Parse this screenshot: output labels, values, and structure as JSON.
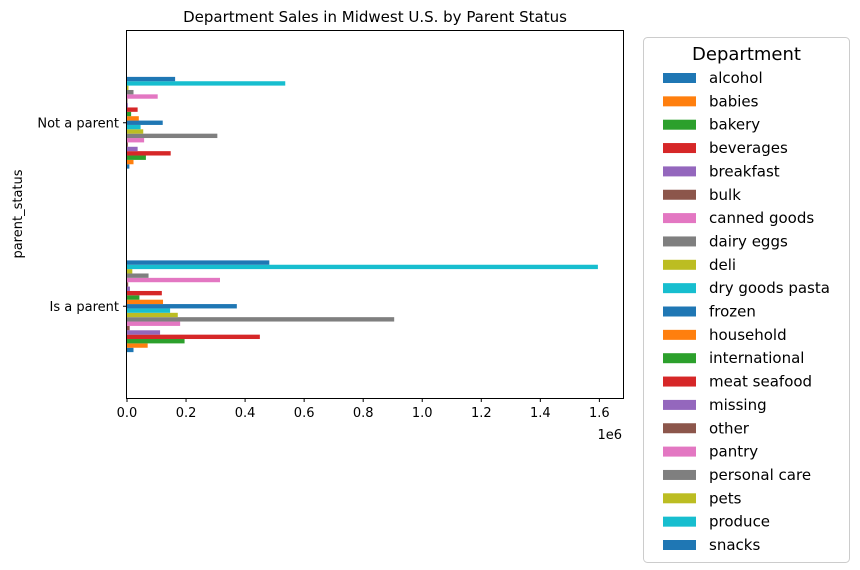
{
  "chart_data": {
    "type": "bar",
    "orientation": "horizontal",
    "title": "Department Sales in Midwest U.S. by Parent Status",
    "ylabel": "parent_status",
    "xlabel": "",
    "x_scale_label": "1e6",
    "x_tick_labels": [
      "0.0",
      "0.2",
      "0.4",
      "0.6",
      "0.8",
      "1.0",
      "1.2",
      "1.4",
      "1.6"
    ],
    "xlim": [
      0,
      1680000
    ],
    "categories": [
      "Is a parent",
      "Not a parent"
    ],
    "legend": {
      "title": "Department",
      "placement": "outside-right"
    },
    "series": [
      {
        "name": "alcohol",
        "color": "#1f77b4",
        "values": [
          22000,
          8000
        ]
      },
      {
        "name": "babies",
        "color": "#ff7f0e",
        "values": [
          70000,
          22000
        ]
      },
      {
        "name": "bakery",
        "color": "#2ca02c",
        "values": [
          195000,
          64000
        ]
      },
      {
        "name": "beverages",
        "color": "#d62728",
        "values": [
          450000,
          148000
        ]
      },
      {
        "name": "breakfast",
        "color": "#9467bd",
        "values": [
          112000,
          36000
        ]
      },
      {
        "name": "bulk",
        "color": "#8c564b",
        "values": [
          9000,
          3000
        ]
      },
      {
        "name": "canned goods",
        "color": "#e377c2",
        "values": [
          180000,
          58000
        ]
      },
      {
        "name": "dairy eggs",
        "color": "#7f7f7f",
        "values": [
          905000,
          306000
        ]
      },
      {
        "name": "deli",
        "color": "#bcbd22",
        "values": [
          172000,
          55000
        ]
      },
      {
        "name": "dry goods pasta",
        "color": "#17becf",
        "values": [
          146000,
          46000
        ]
      },
      {
        "name": "frozen",
        "color": "#1f77b4",
        "values": [
          372000,
          121000
        ]
      },
      {
        "name": "household",
        "color": "#ff7f0e",
        "values": [
          122000,
          40000
        ]
      },
      {
        "name": "international",
        "color": "#2ca02c",
        "values": [
          42000,
          14000
        ]
      },
      {
        "name": "meat seafood",
        "color": "#d62728",
        "values": [
          118000,
          36000
        ]
      },
      {
        "name": "missing",
        "color": "#9467bd",
        "values": [
          10000,
          3000
        ]
      },
      {
        "name": "other",
        "color": "#8c564b",
        "values": [
          4000,
          1500
        ]
      },
      {
        "name": "pantry",
        "color": "#e377c2",
        "values": [
          315000,
          104000
        ]
      },
      {
        "name": "personal care",
        "color": "#7f7f7f",
        "values": [
          73000,
          22000
        ]
      },
      {
        "name": "pets",
        "color": "#bcbd22",
        "values": [
          18000,
          5000
        ]
      },
      {
        "name": "produce",
        "color": "#17becf",
        "values": [
          1595000,
          536000
        ]
      },
      {
        "name": "snacks",
        "color": "#1f77b4",
        "values": [
          482000,
          163000
        ]
      }
    ]
  }
}
